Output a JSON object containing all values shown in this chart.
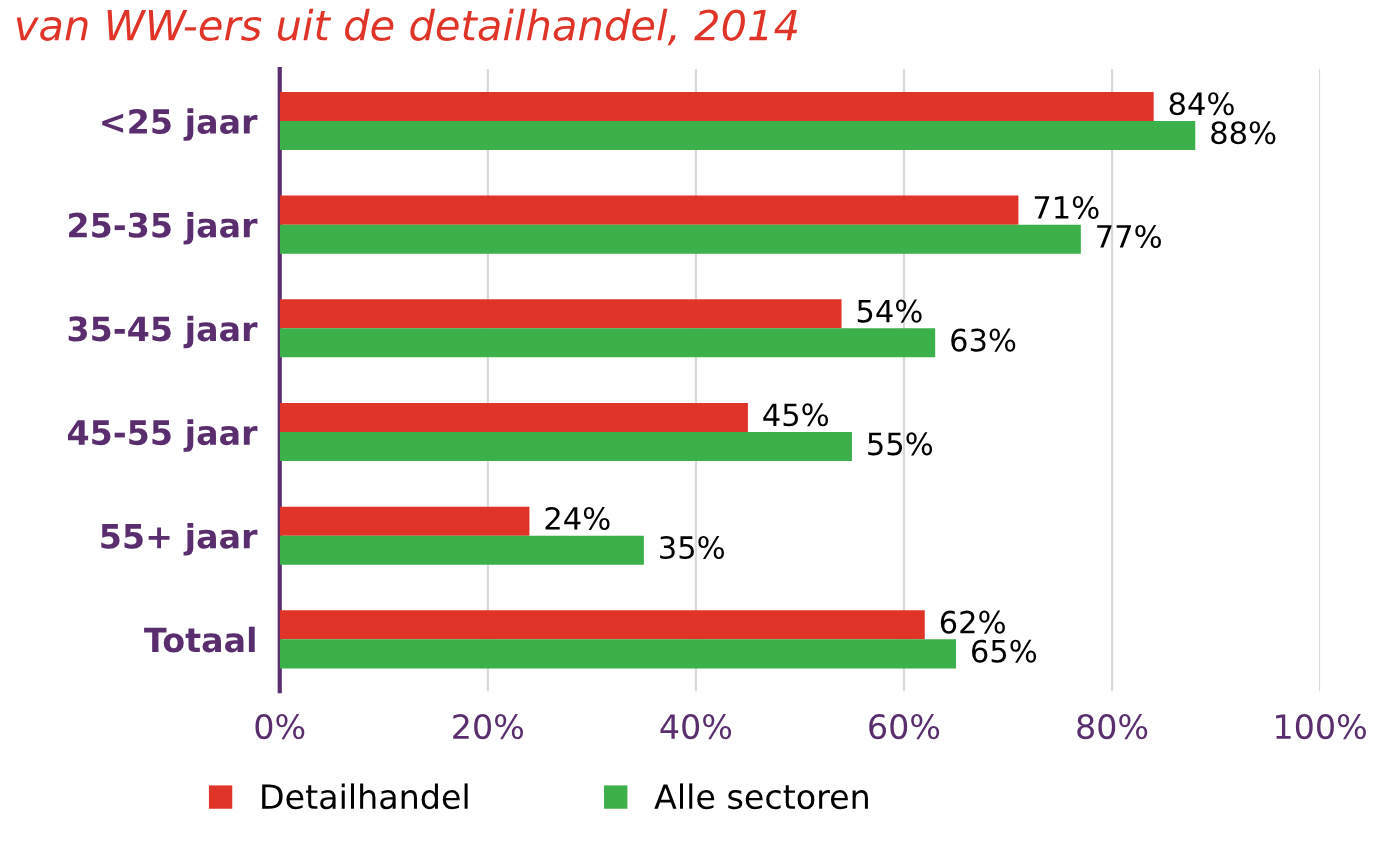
{
  "chart_data": {
    "type": "bar",
    "orientation": "horizontal",
    "title": "van WW-ers uit de detailhandel, 2014",
    "categories": [
      "<25 jaar",
      "25-35 jaar",
      "35-45 jaar",
      "45-55 jaar",
      "55+ jaar",
      "Totaal"
    ],
    "series": [
      {
        "name": "Detailhandel",
        "color": "#e03428",
        "values": [
          84,
          71,
          54,
          45,
          24,
          62
        ],
        "value_labels": [
          "84%",
          "71%",
          "54%",
          "45%",
          "24%",
          "62%"
        ]
      },
      {
        "name": "Alle sectoren",
        "color": "#3cb04a",
        "values": [
          88,
          77,
          63,
          55,
          35,
          65
        ],
        "value_labels": [
          "88%",
          "77%",
          "63%",
          "55%",
          "35%",
          "65%"
        ]
      }
    ],
    "xlim": [
      0,
      100
    ],
    "xticks": [
      {
        "value": 0,
        "label": "0%"
      },
      {
        "value": 20,
        "label": "20%"
      },
      {
        "value": 40,
        "label": "40%"
      },
      {
        "value": 60,
        "label": "60%"
      },
      {
        "value": 80,
        "label": "80%"
      },
      {
        "value": 100,
        "label": "100%"
      }
    ],
    "grid": "x",
    "legend": "bottom"
  }
}
